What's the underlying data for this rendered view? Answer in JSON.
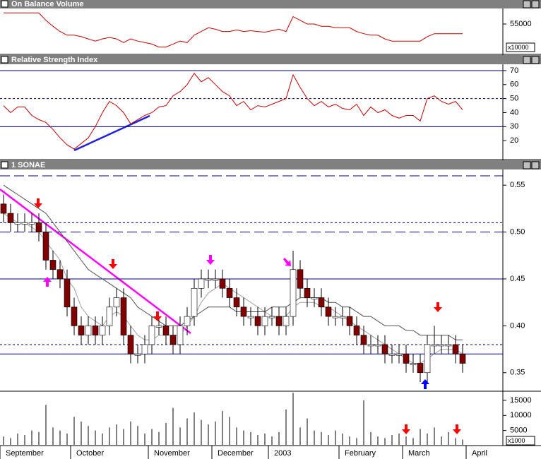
{
  "chart_data": [
    {
      "type": "line",
      "title": "On Balance Volume",
      "color": "#cc0000",
      "ylim": [
        51200,
        57000
      ],
      "yticks": [
        55000
      ],
      "scale_label": "x10000",
      "values": [
        56500,
        56500,
        56500,
        56500,
        56500,
        56500,
        55500,
        54700,
        54000,
        53500,
        53500,
        53300,
        53000,
        52700,
        53000,
        53200,
        53000,
        52500,
        53000,
        52700,
        52500,
        52300,
        51900,
        51900,
        52300,
        52700,
        52500,
        53500,
        54000,
        54500,
        54300,
        54000,
        54000,
        54200,
        54000,
        54100,
        54000,
        53900,
        54100,
        54300,
        54000,
        56000,
        55500,
        55000,
        55000,
        54700,
        54700,
        54500,
        54500,
        54500,
        54000,
        53700,
        53500,
        53500,
        53000,
        52700,
        52700,
        52700,
        52700,
        52700,
        53300,
        53700,
        53700,
        53700,
        53700,
        53700,
        null,
        null,
        null,
        null
      ]
    },
    {
      "type": "line",
      "title": "Relative Strength Index",
      "color": "#cc0000",
      "ylim": [
        8,
        74
      ],
      "yticks": [
        20,
        30,
        40,
        50,
        60,
        70
      ],
      "levels": [
        {
          "value": 70,
          "style": "solid"
        },
        {
          "value": 50,
          "style": "dotted"
        },
        {
          "value": 30,
          "style": "solid"
        }
      ],
      "level_color": "#000080",
      "values": [
        45,
        40,
        44,
        44,
        38,
        35,
        33,
        28,
        22,
        17,
        14,
        18,
        22,
        30,
        40,
        48,
        45,
        40,
        32,
        35,
        38,
        40,
        44,
        45,
        52,
        55,
        60,
        68,
        62,
        65,
        60,
        55,
        52,
        45,
        48,
        42,
        45,
        44,
        46,
        48,
        50,
        67,
        58,
        50,
        45,
        48,
        44,
        46,
        43,
        42,
        46,
        38,
        44,
        40,
        42,
        38,
        36,
        38,
        38,
        34,
        50,
        52,
        48,
        46,
        48,
        42,
        null,
        null,
        null,
        null
      ]
    },
    {
      "type": "candlestick",
      "title": "1 SONAE",
      "ylim": [
        0.331,
        0.566
      ],
      "yticks": [
        0.35,
        {
          "value": 0.4,
          "label": "0.40"
        },
        0.45,
        {
          "value": 0.5,
          "label": "0.50"
        },
        0.55
      ],
      "up_color": "#ffffff",
      "down_color": "#800000",
      "level_color": "#000080",
      "levels": [
        {
          "value": 0.56,
          "style": "dashed"
        },
        {
          "value": 0.51,
          "style": "dotted"
        },
        {
          "value": 0.5,
          "style": "dashed"
        },
        {
          "value": 0.45,
          "style": "solid"
        },
        {
          "value": 0.38,
          "style": "dotted"
        },
        {
          "value": 0.37,
          "style": "solid"
        }
      ],
      "open": [
        0.53,
        0.52,
        0.51,
        0.51,
        0.51,
        0.51,
        0.5,
        0.47,
        0.46,
        0.45,
        0.42,
        0.4,
        0.39,
        0.4,
        0.39,
        0.4,
        0.42,
        0.43,
        0.39,
        0.37,
        0.37,
        0.38,
        0.4,
        0.4,
        0.39,
        0.38,
        0.4,
        0.41,
        0.44,
        0.45,
        0.45,
        0.45,
        0.44,
        0.43,
        0.42,
        0.41,
        0.41,
        0.4,
        0.41,
        0.41,
        0.4,
        0.41,
        0.46,
        0.44,
        0.43,
        0.43,
        0.42,
        0.41,
        0.41,
        0.41,
        0.4,
        0.39,
        0.38,
        0.38,
        0.38,
        0.37,
        0.37,
        0.37,
        0.36,
        0.36,
        0.35,
        0.38,
        0.38,
        0.38,
        0.38,
        0.37,
        null,
        null,
        null,
        null
      ],
      "high": [
        0.54,
        0.53,
        0.52,
        0.52,
        0.52,
        0.52,
        0.51,
        0.48,
        0.47,
        0.46,
        0.43,
        0.41,
        0.41,
        0.41,
        0.41,
        0.43,
        0.44,
        0.44,
        0.4,
        0.38,
        0.39,
        0.41,
        0.41,
        0.41,
        0.4,
        0.41,
        0.42,
        0.45,
        0.46,
        0.46,
        0.46,
        0.46,
        0.45,
        0.44,
        0.43,
        0.42,
        0.42,
        0.42,
        0.42,
        0.42,
        0.42,
        0.48,
        0.47,
        0.45,
        0.44,
        0.44,
        0.43,
        0.42,
        0.42,
        0.42,
        0.41,
        0.4,
        0.39,
        0.39,
        0.39,
        0.38,
        0.38,
        0.38,
        0.37,
        0.37,
        0.39,
        0.4,
        0.39,
        0.39,
        0.39,
        0.38,
        null,
        null,
        null,
        null
      ],
      "low": [
        0.51,
        0.5,
        0.5,
        0.5,
        0.5,
        0.49,
        0.46,
        0.45,
        0.44,
        0.41,
        0.39,
        0.38,
        0.38,
        0.38,
        0.38,
        0.39,
        0.41,
        0.38,
        0.36,
        0.36,
        0.36,
        0.37,
        0.39,
        0.38,
        0.37,
        0.37,
        0.39,
        0.4,
        0.43,
        0.44,
        0.44,
        0.43,
        0.42,
        0.41,
        0.4,
        0.4,
        0.39,
        0.39,
        0.4,
        0.39,
        0.39,
        0.4,
        0.43,
        0.42,
        0.42,
        0.41,
        0.4,
        0.4,
        0.4,
        0.39,
        0.38,
        0.37,
        0.37,
        0.37,
        0.36,
        0.36,
        0.36,
        0.35,
        0.35,
        0.34,
        0.34,
        0.37,
        0.37,
        0.37,
        0.36,
        0.35,
        null,
        null,
        null,
        null
      ],
      "close": [
        0.52,
        0.51,
        0.51,
        0.51,
        0.51,
        0.5,
        0.47,
        0.46,
        0.45,
        0.42,
        0.4,
        0.39,
        0.4,
        0.39,
        0.4,
        0.42,
        0.43,
        0.39,
        0.37,
        0.37,
        0.38,
        0.4,
        0.4,
        0.39,
        0.38,
        0.4,
        0.41,
        0.44,
        0.45,
        0.45,
        0.45,
        0.44,
        0.43,
        0.42,
        0.41,
        0.41,
        0.4,
        0.41,
        0.41,
        0.4,
        0.41,
        0.46,
        0.44,
        0.43,
        0.43,
        0.42,
        0.41,
        0.41,
        0.41,
        0.4,
        0.39,
        0.38,
        0.38,
        0.38,
        0.37,
        0.37,
        0.37,
        0.36,
        0.36,
        0.35,
        0.38,
        0.38,
        0.38,
        0.38,
        0.37,
        0.36,
        null,
        null,
        null,
        null
      ],
      "moving_averages": [
        {
          "color": "#505050",
          "values": [
            0.55,
            0.545,
            0.54,
            0.535,
            0.53,
            0.525,
            0.52,
            0.51,
            0.5,
            0.49,
            0.48,
            0.47,
            0.46,
            0.455,
            0.45,
            0.445,
            0.44,
            0.435,
            0.43,
            0.42,
            0.415,
            0.41,
            0.405,
            0.4,
            0.4,
            0.4,
            0.405,
            0.41,
            0.415,
            0.42,
            0.42,
            0.42,
            0.42,
            0.415,
            0.415,
            0.415,
            0.415,
            0.415,
            0.42,
            0.42,
            0.42,
            0.425,
            0.43,
            0.43,
            0.43,
            0.43,
            0.425,
            0.425,
            0.42,
            0.42,
            0.415,
            0.41,
            0.41,
            0.405,
            0.4,
            0.4,
            0.4,
            0.395,
            0.395,
            0.39,
            0.39,
            0.39,
            0.39,
            0.39,
            0.385,
            0.385,
            null,
            null,
            null,
            null
          ]
        },
        {
          "color": "#a0a0a0",
          "values": [
            0.52,
            0.515,
            0.51,
            0.51,
            0.505,
            0.5,
            0.49,
            0.48,
            0.47,
            0.45,
            0.44,
            0.42,
            0.41,
            0.405,
            0.4,
            0.41,
            0.415,
            0.41,
            0.4,
            0.39,
            0.385,
            0.385,
            0.39,
            0.39,
            0.39,
            0.39,
            0.4,
            0.41,
            0.425,
            0.435,
            0.44,
            0.445,
            0.44,
            0.435,
            0.43,
            0.425,
            0.42,
            0.415,
            0.41,
            0.41,
            0.41,
            0.42,
            0.425,
            0.425,
            0.425,
            0.42,
            0.42,
            0.415,
            0.41,
            0.405,
            0.4,
            0.395,
            0.39,
            0.385,
            0.38,
            0.375,
            0.37,
            0.365,
            0.36,
            0.36,
            0.365,
            0.37,
            0.375,
            0.375,
            0.375,
            0.37,
            null,
            null,
            null,
            null
          ]
        }
      ]
    },
    {
      "type": "bar",
      "color": "#808080",
      "ylim": [
        0,
        17800
      ],
      "yticks": [
        5000,
        10000,
        15000
      ],
      "scale_label": "x1000",
      "categories": [
        "September",
        null,
        null,
        null,
        null,
        null,
        null,
        null,
        null,
        null,
        "October",
        null,
        null,
        null,
        null,
        null,
        null,
        null,
        null,
        null,
        null,
        "November",
        null,
        null,
        null,
        null,
        null,
        null,
        null,
        null,
        "December",
        null,
        null,
        null,
        null,
        null,
        null,
        null,
        "2003",
        null,
        null,
        null,
        null,
        null,
        null,
        null,
        null,
        null,
        "February",
        null,
        null,
        null,
        null,
        null,
        null,
        null,
        null,
        "March",
        null,
        null,
        null,
        null,
        null,
        null,
        null,
        null,
        "April",
        null,
        null,
        null
      ],
      "values": [
        3000,
        2500,
        4000,
        3500,
        5000,
        4500,
        13500,
        6000,
        5000,
        4000,
        9500,
        8000,
        6500,
        5000,
        4000,
        6000,
        7000,
        5500,
        8000,
        6500,
        4000,
        5500,
        4500,
        7500,
        12500,
        6000,
        9000,
        11000,
        8500,
        7000,
        8000,
        11500,
        9500,
        6000,
        5000,
        4500,
        3500,
        4000,
        3000,
        4500,
        12000,
        17500,
        6000,
        9000,
        5000,
        4500,
        3500,
        5000,
        4000,
        3000,
        2500,
        15000,
        4500,
        3000,
        2500,
        3500,
        4000,
        3000,
        2500,
        5500,
        4000,
        6000,
        3000,
        4500,
        2500,
        2000,
        null,
        null,
        null,
        null
      ]
    }
  ]
}
